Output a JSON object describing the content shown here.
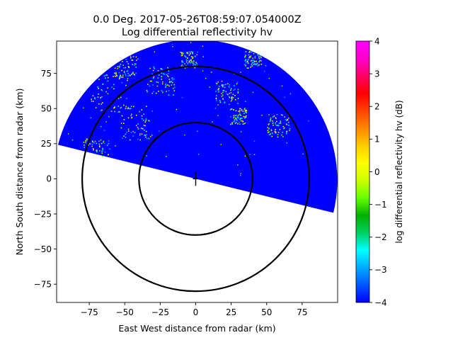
{
  "chart_data": {
    "type": "heatmap",
    "title_line1": "0.0 Deg. 2017-05-26T08:59:07.054000Z",
    "title_line2": "Log differential reflectivity hv",
    "xlabel": "East West distance from radar (km)",
    "ylabel": "North South distance from radar (km)",
    "xlim": [
      -98,
      100
    ],
    "ylim": [
      -88,
      98
    ],
    "xticks": [
      -75,
      -50,
      -25,
      0,
      25,
      50,
      75
    ],
    "yticks": [
      -75,
      -50,
      -25,
      0,
      25,
      50,
      75
    ],
    "xtick_labels": [
      "−75",
      "−50",
      "−25",
      "0",
      "25",
      "50",
      "75"
    ],
    "ytick_labels": [
      "−75",
      "−50",
      "−25",
      "0",
      "25",
      "50",
      "75"
    ],
    "range_rings_km": [
      40,
      80
    ],
    "sweep": {
      "max_range_km": 100,
      "start_azimuth_deg": 284,
      "end_azimuth_deg": 104,
      "dominant_value_db": -4
    },
    "speckle_clusters": [
      {
        "x": -60,
        "y": 62,
        "spread": 14
      },
      {
        "x": -42,
        "y": 40,
        "spread": 12
      },
      {
        "x": -70,
        "y": 20,
        "spread": 10
      },
      {
        "x": -25,
        "y": 70,
        "spread": 10
      },
      {
        "x": -50,
        "y": 80,
        "spread": 8
      },
      {
        "x": 22,
        "y": 62,
        "spread": 8
      },
      {
        "x": 30,
        "y": 45,
        "spread": 6
      },
      {
        "x": 58,
        "y": 38,
        "spread": 8
      },
      {
        "x": -5,
        "y": 85,
        "spread": 6
      },
      {
        "x": 40,
        "y": 85,
        "spread": 6
      }
    ],
    "colorbar": {
      "label": "log differential reflectivity hv (dB)",
      "min": -4,
      "max": 4,
      "ticks": [
        -4,
        -3,
        -2,
        -1,
        0,
        1,
        2,
        3,
        4
      ],
      "tick_labels": [
        "−4",
        "−3",
        "−2",
        "−1",
        "0",
        "1",
        "2",
        "3",
        "4"
      ],
      "colormap": [
        "#0000ff",
        "#0055ff",
        "#00aaff",
        "#00ffff",
        "#00d060",
        "#00b000",
        "#66ff00",
        "#ccff00",
        "#ffff00",
        "#ffcc00",
        "#ff8800",
        "#ff4400",
        "#ff0000",
        "#ff0066",
        "#ff00cc",
        "#ff00ff"
      ]
    }
  }
}
